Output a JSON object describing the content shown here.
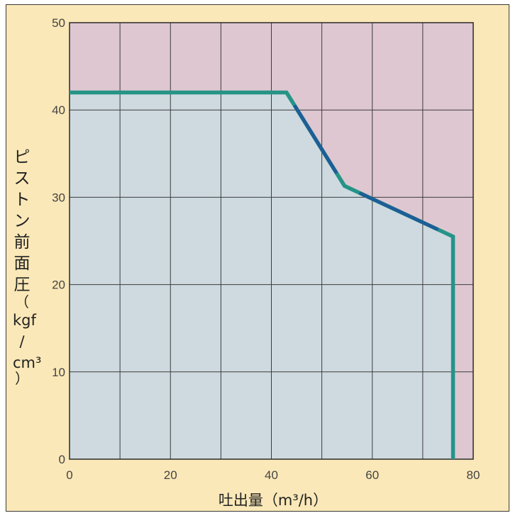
{
  "chart_data": {
    "type": "area",
    "xlabel": "吐出量（m³/h）",
    "ylabel": {
      "vertical_text": [
        "ピ",
        "ス",
        "ト",
        "ン",
        "前",
        "面",
        "圧",
        "（"
      ],
      "unit": [
        "kgf",
        "/",
        "cm³"
      ],
      "close": "）"
    },
    "xlim": [
      0,
      80
    ],
    "ylim": [
      0,
      50
    ],
    "xticks": [
      0,
      20,
      40,
      60,
      80
    ],
    "yticks": [
      0,
      10,
      20,
      30,
      40,
      50
    ],
    "grid": true,
    "grid_x_step": 10,
    "grid_y_step": 10,
    "series": [
      {
        "x": [
          0,
          43,
          54.5,
          76,
          76
        ],
        "y": [
          42,
          42,
          31.3,
          25.5,
          0
        ]
      }
    ],
    "colors": {
      "under_curve": "#cedae0",
      "above_curve": "#dec7d1",
      "line_main": "#1e5e96",
      "line_secondary": "#259487",
      "frame_bg": "#fbe8b8"
    }
  }
}
